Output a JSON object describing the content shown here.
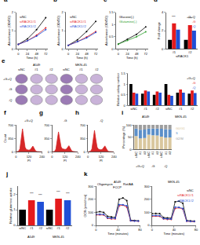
{
  "chart_data": [
    {
      "type": "line",
      "title": "a",
      "x": [
        0,
        24,
        48,
        72
      ],
      "xlim": [
        -6,
        78
      ],
      "xticks": [
        0,
        24,
        48,
        72
      ],
      "ylim": [
        0,
        2
      ],
      "yticks": [
        0,
        1,
        2
      ],
      "xlabel": "Time (h)",
      "ylabel": "Absorbance (OD450)",
      "legend": "upper left",
      "series": [
        {
          "name": "siNC",
          "color": "#000000",
          "values": [
            0.25,
            0.55,
            1.05,
            1.7
          ]
        },
        {
          "name": "siRACK1#1",
          "color": "#e41a1c",
          "values": [
            0.25,
            0.45,
            0.75,
            1.15
          ]
        },
        {
          "name": "siRACK1#2",
          "color": "#1f4fd6",
          "values": [
            0.25,
            0.45,
            0.7,
            1.05
          ]
        }
      ]
    },
    {
      "type": "line",
      "title": "b",
      "x": [
        0,
        24,
        48,
        72
      ],
      "xlim": [
        -6,
        78
      ],
      "xticks": [
        0,
        24,
        48,
        72
      ],
      "ylim": [
        0,
        2
      ],
      "yticks": [
        0,
        1,
        2
      ],
      "xlabel": "Time (h)",
      "ylabel": "Absorbance (OD450)",
      "legend": "upper left",
      "series": [
        {
          "name": "siNC",
          "color": "#000000",
          "values": [
            0.2,
            0.5,
            0.95,
            1.5
          ]
        },
        {
          "name": "siRACK1#1",
          "color": "#e41a1c",
          "values": [
            0.2,
            0.4,
            0.65,
            0.95
          ]
        },
        {
          "name": "siRACK1#2",
          "color": "#1f4fd6",
          "values": [
            0.2,
            0.4,
            0.6,
            0.9
          ]
        }
      ]
    },
    {
      "type": "line",
      "title": "c",
      "x": [
        0,
        24,
        48,
        72
      ],
      "xlim": [
        -6,
        78
      ],
      "xticks": [
        0,
        24,
        48,
        72
      ],
      "ylim": [
        0,
        1.5
      ],
      "yticks": [
        0,
        0.5,
        1,
        1.5
      ],
      "xlabel": "Time (h)",
      "ylabel": "Absorbance (OD450)",
      "legend": "upper left",
      "series": [
        {
          "name": "Glucose(-)",
          "color": "#000000",
          "values": [
            0.2,
            0.4,
            0.6,
            0.9
          ]
        },
        {
          "name": "Glutamine(-)",
          "color": "#2ca02c",
          "values": [
            0.2,
            0.35,
            0.5,
            0.7
          ]
        }
      ]
    },
    {
      "type": "bar",
      "title": "d",
      "categories": [
        "#1",
        "#2"
      ],
      "xlabel": "siRACK1",
      "ylabel": "Fold change",
      "ylim": [
        0,
        4
      ],
      "yticks": [
        0,
        2,
        4
      ],
      "legend": "upper right",
      "series": [
        {
          "name": "+G+Q",
          "color": "#000000",
          "values": [
            1,
            1
          ]
        },
        {
          "name": "-G",
          "color": "#e41a1c",
          "values": [
            2.8,
            2.6
          ]
        },
        {
          "name": "-Q",
          "color": "#1f4fd6",
          "values": [
            2.1,
            2.0
          ]
        }
      ],
      "annotations": [
        {
          "text": "***",
          "x": 0,
          "y": 3.1
        },
        {
          "text": "***",
          "x": 1,
          "y": 2.9
        }
      ]
    },
    {
      "type": "colony_images",
      "title": "e",
      "rows": [
        "+G+Q",
        "-G",
        "-Q"
      ],
      "columns": [
        "siNC",
        "#1",
        "#2",
        "siNC",
        "#1",
        "#2"
      ],
      "groups": [
        "A549",
        "MKN-45"
      ]
    },
    {
      "type": "bar",
      "categories": [
        "siNC",
        "#1",
        "#2",
        "siNC",
        "#1",
        "#2"
      ],
      "ylabel": "Relative colony number",
      "ylim": [
        0,
        1.5
      ],
      "yticks": [
        0,
        0.5,
        1,
        1.5
      ],
      "legend": "upper right",
      "series": [
        {
          "name": "+G+Q",
          "color": "#000000",
          "values": [
            1,
            0.55,
            0.5,
            1,
            0.6,
            0.55
          ]
        },
        {
          "name": "-G",
          "color": "#e41a1c",
          "values": [
            0.6,
            0.7,
            0.65,
            0.5,
            0.75,
            0.7
          ]
        },
        {
          "name": "-Q",
          "color": "#1f4fd6",
          "values": [
            0.55,
            0.65,
            0.6,
            0.45,
            0.6,
            0.58
          ]
        }
      ],
      "annotations": [
        {
          "text": "A549",
          "x": 1
        },
        {
          "text": "MKN-45",
          "x": 4
        }
      ]
    },
    {
      "type": "area",
      "title": "f",
      "subtitle": "+G+Q",
      "x": [
        0,
        12,
        24,
        36,
        48,
        60,
        72,
        84,
        96,
        108,
        120,
        132,
        144,
        156,
        168,
        180,
        192,
        204,
        216,
        228,
        240
      ],
      "xlim": [
        0,
        240
      ],
      "xticks": [
        0,
        120,
        240
      ],
      "ylim": [
        0,
        700
      ],
      "yticks": [
        0,
        350,
        700
      ],
      "xlabel": "PI",
      "ylabel": "Count",
      "series": [
        {
          "color": "#d62728",
          "values": [
            0,
            5,
            20,
            80,
            300,
            600,
            350,
            120,
            60,
            50,
            45,
            60,
            110,
            150,
            90,
            30,
            10,
            5,
            2,
            0,
            0
          ]
        }
      ]
    },
    {
      "type": "area",
      "title": "g",
      "subtitle": "-G",
      "x": [
        0,
        12,
        24,
        36,
        48,
        60,
        72,
        84,
        96,
        108,
        120,
        132,
        144,
        156,
        168,
        180,
        192,
        204,
        216,
        228,
        240
      ],
      "xlim": [
        0,
        240
      ],
      "xticks": [
        0,
        120,
        240
      ],
      "ylim": [
        0,
        700
      ],
      "yticks": [
        0,
        350,
        700
      ],
      "xlabel": "PI",
      "series": [
        {
          "color": "#d62728",
          "values": [
            0,
            4,
            15,
            70,
            280,
            520,
            320,
            130,
            80,
            70,
            65,
            70,
            120,
            160,
            100,
            35,
            12,
            5,
            2,
            0,
            0
          ]
        }
      ]
    },
    {
      "type": "area",
      "title": "h",
      "subtitle": "-Q",
      "x": [
        0,
        12,
        24,
        36,
        48,
        60,
        72,
        84,
        96,
        108,
        120,
        132,
        144,
        156,
        168,
        180,
        192,
        204,
        216,
        228,
        240
      ],
      "xlim": [
        0,
        240
      ],
      "xticks": [
        0,
        120,
        240
      ],
      "ylim": [
        0,
        700
      ],
      "yticks": [
        0,
        350,
        700
      ],
      "xlabel": "PI",
      "series": [
        {
          "color": "#d62728",
          "values": [
            0,
            5,
            18,
            75,
            290,
            560,
            330,
            125,
            70,
            60,
            55,
            65,
            115,
            155,
            95,
            32,
            11,
            5,
            2,
            0,
            0
          ]
        }
      ]
    },
    {
      "type": "bar",
      "title": "i",
      "stacked": true,
      "categories": [
        "siNC",
        "#1",
        "#2",
        "siNC",
        "#1",
        "#2",
        "siNC",
        "#1",
        "#2"
      ],
      "ylabel": "Percentage (%)",
      "ylim": [
        0,
        100
      ],
      "yticks": [
        0,
        50,
        100
      ],
      "legend": "right",
      "series": [
        {
          "name": "G0/G1",
          "color": "#d9c79e",
          "values": [
            55,
            45,
            47,
            60,
            58,
            57,
            52,
            48,
            49
          ]
        },
        {
          "name": "S",
          "color": "#5b8fc9",
          "values": [
            30,
            35,
            34,
            25,
            27,
            28,
            32,
            35,
            33
          ]
        },
        {
          "name": "G2/M",
          "color": "#9e9e9e",
          "values": [
            15,
            20,
            19,
            15,
            15,
            15,
            16,
            17,
            18
          ]
        }
      ],
      "annotations": [
        {
          "text": "+G+Q",
          "x": 1
        },
        {
          "text": "-G",
          "x": 4
        },
        {
          "text": "-Q",
          "x": 7
        }
      ]
    },
    {
      "type": "bar",
      "title": "j",
      "categories": [
        "siNC",
        "#1",
        "#2",
        "siNC",
        "#1",
        "#2"
      ],
      "ylabel": "Relative glutamine uptake",
      "ylim": [
        0,
        2.5
      ],
      "yticks": [
        0,
        1,
        2
      ],
      "values": [
        1,
        1.6,
        1.5,
        1,
        1.7,
        1.6
      ],
      "colors": [
        "#000000",
        "#e41a1c",
        "#1f4fd6",
        "#000000",
        "#e41a1c",
        "#1f4fd6"
      ],
      "annotations": [
        {
          "text": "***",
          "x": 1,
          "y": 1.8
        },
        {
          "text": "***",
          "x": 2,
          "y": 1.7
        },
        {
          "text": "***",
          "x": 4,
          "y": 1.9
        },
        {
          "text": "***",
          "x": 5,
          "y": 1.8
        },
        {
          "text": "A549",
          "x": 1
        },
        {
          "text": "MKN-45",
          "x": 4
        }
      ]
    },
    {
      "type": "line",
      "title": "k",
      "subtitle": "A549",
      "x": [
        0,
        7,
        14,
        21,
        28,
        35,
        42,
        49,
        56,
        63,
        70,
        77
      ],
      "xlim": [
        0,
        80
      ],
      "xticks": [
        0,
        40,
        80
      ],
      "ylim": [
        0,
        300
      ],
      "yticks": [
        0,
        100,
        200,
        300
      ],
      "xlabel": "Time (minutes)",
      "ylabel": "OCR (pmol/min)",
      "series": [
        {
          "name": "siNC",
          "color": "#000000",
          "values": [
            100,
            105,
            100,
            70,
            65,
            60,
            200,
            210,
            190,
            40,
            38,
            35
          ]
        },
        {
          "name": "siRACK1#1",
          "color": "#e41a1c",
          "values": [
            80,
            82,
            80,
            55,
            50,
            50,
            150,
            155,
            140,
            35,
            33,
            32
          ]
        },
        {
          "name": "siRACK1#2",
          "color": "#1f4fd6",
          "values": [
            85,
            86,
            84,
            58,
            55,
            54,
            160,
            158,
            150,
            36,
            34,
            33
          ]
        }
      ],
      "annotations": [
        {
          "text": "Oligomycin",
          "x": 17,
          "y": 290
        },
        {
          "text": "FCCP",
          "x": 38,
          "y": 265
        },
        {
          "text": "Rot/AA",
          "x": 59,
          "y": 290
        }
      ]
    },
    {
      "type": "line",
      "subtitle": "MKN-45",
      "x": [
        0,
        7,
        14,
        21,
        28,
        35,
        42,
        49,
        56,
        63,
        70,
        77
      ],
      "xlim": [
        0,
        80
      ],
      "xticks": [
        0,
        40,
        80
      ],
      "ylim": [
        0,
        300
      ],
      "yticks": [
        0,
        100,
        200,
        300
      ],
      "xlabel": "Time (minutes)",
      "legend": "upper right",
      "series": [
        {
          "name": "siNC",
          "color": "#000000",
          "values": [
            90,
            92,
            90,
            60,
            58,
            55,
            180,
            185,
            170,
            38,
            35,
            33
          ]
        },
        {
          "name": "siRACK1#1",
          "color": "#e41a1c",
          "values": [
            70,
            72,
            70,
            50,
            46,
            45,
            130,
            135,
            125,
            32,
            30,
            29
          ]
        },
        {
          "name": "siRACK1#2",
          "color": "#1f4fd6",
          "values": [
            75,
            76,
            74,
            52,
            50,
            48,
            140,
            138,
            130,
            33,
            31,
            30
          ]
        }
      ]
    }
  ]
}
